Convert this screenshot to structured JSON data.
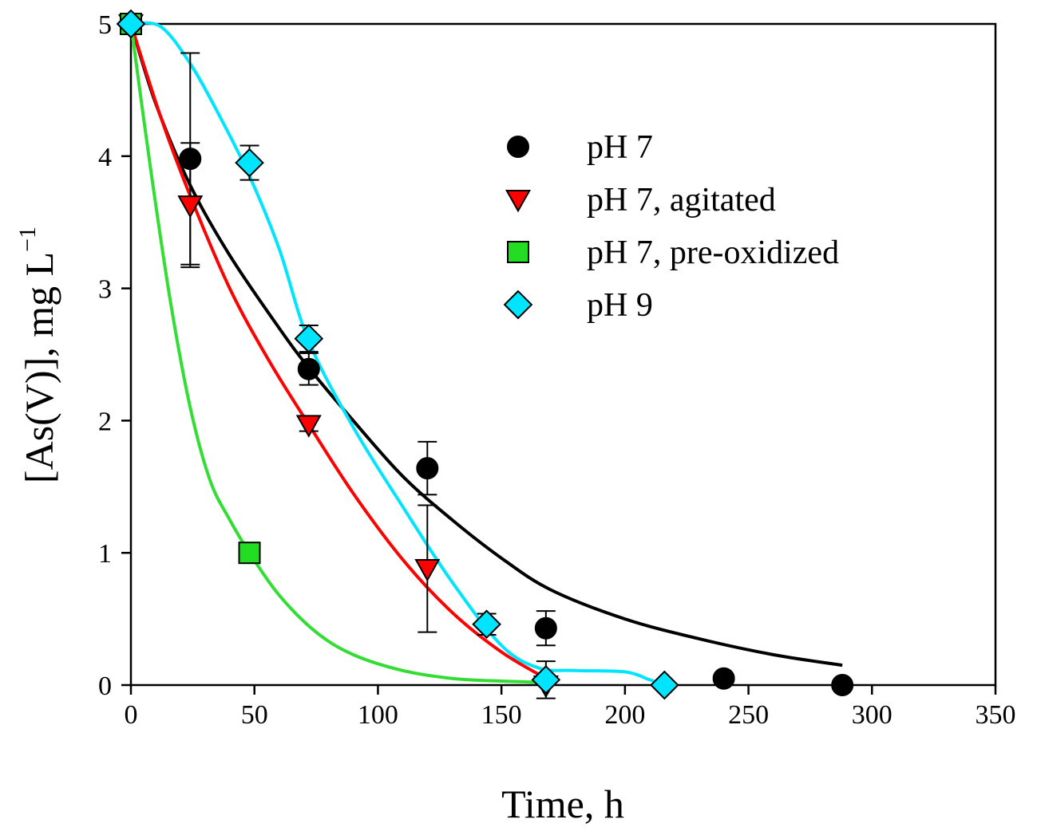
{
  "chart_data": {
    "type": "scatter",
    "title": "",
    "xlabel": "Time, h",
    "ylabel": "[As(V)], mg L",
    "ylabel_superscript": "−1",
    "xlim": [
      0,
      350
    ],
    "ylim": [
      0,
      5
    ],
    "xticks": [
      0,
      50,
      100,
      150,
      200,
      250,
      300,
      350
    ],
    "yticks": [
      0,
      1,
      2,
      3,
      4,
      5
    ],
    "grid": false,
    "legend_position": "upper-right-inside",
    "series": [
      {
        "name": "pH 7",
        "marker": "circle",
        "color": "#000000",
        "curve_color": "#000000",
        "x": [
          0,
          24,
          72,
          120,
          168,
          240,
          288
        ],
        "y": [
          5.0,
          3.98,
          2.39,
          1.64,
          0.43,
          0.05,
          0.0
        ],
        "err": [
          0,
          0.8,
          0.12,
          0.2,
          0.13,
          0,
          0
        ],
        "curve": {
          "x": [
            0,
            10,
            24,
            40,
            60,
            72,
            90,
            110,
            130,
            150,
            170,
            200,
            230,
            260,
            288
          ],
          "y": [
            5.0,
            4.4,
            3.78,
            3.25,
            2.7,
            2.4,
            2.0,
            1.58,
            1.25,
            0.96,
            0.72,
            0.5,
            0.35,
            0.23,
            0.15
          ]
        }
      },
      {
        "name": "pH 7, agitated",
        "marker": "triangle-down",
        "color": "#ff0000",
        "curve_color": "#ff0000",
        "x": [
          0,
          24,
          72,
          120,
          168
        ],
        "y": [
          5.0,
          3.63,
          1.97,
          0.88,
          0.0
        ],
        "err": [
          0,
          0.47,
          0.05,
          0.48,
          0
        ],
        "curve": {
          "x": [
            0,
            12,
            24,
            40,
            56,
            72,
            90,
            110,
            130,
            150,
            168
          ],
          "y": [
            5.0,
            4.3,
            3.7,
            3.0,
            2.45,
            1.97,
            1.45,
            0.95,
            0.55,
            0.25,
            0.05
          ]
        }
      },
      {
        "name": "pH 7, pre-oxidized",
        "marker": "square",
        "color": "#22dd22",
        "curve_color": "#33dd33",
        "x": [
          0,
          48
        ],
        "y": [
          5.0,
          1.0
        ],
        "err": [
          0,
          0
        ],
        "curve": {
          "x": [
            0,
            8,
            16,
            24,
            32,
            40,
            48,
            60,
            75,
            90,
            110,
            130,
            150,
            168
          ],
          "y": [
            5.0,
            3.9,
            2.9,
            2.1,
            1.55,
            1.25,
            1.0,
            0.68,
            0.4,
            0.23,
            0.11,
            0.05,
            0.03,
            0.02
          ]
        }
      },
      {
        "name": "pH 9",
        "marker": "diamond",
        "color": "#00e5ff",
        "curve_color": "#00e5ff",
        "x": [
          0,
          48,
          72,
          144,
          168,
          216
        ],
        "y": [
          5.0,
          3.95,
          2.62,
          0.46,
          0.04,
          0.0
        ],
        "err": [
          0,
          0.13,
          0.1,
          0.08,
          0.14,
          0
        ],
        "curve": {
          "x": [
            0,
            12,
            24,
            36,
            48,
            60,
            72,
            90,
            110,
            130,
            150,
            165,
            180,
            200,
            210,
            216
          ],
          "y": [
            5.0,
            4.98,
            4.7,
            4.3,
            3.85,
            3.3,
            2.6,
            1.95,
            1.35,
            0.78,
            0.3,
            0.13,
            0.11,
            0.1,
            0.04,
            0.0
          ]
        }
      }
    ]
  }
}
